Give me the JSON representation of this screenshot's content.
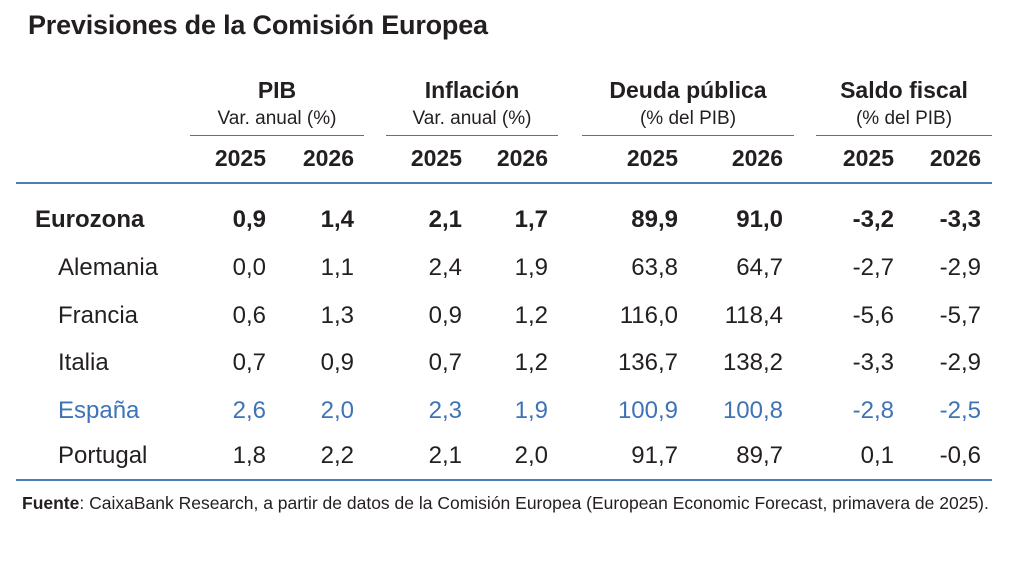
{
  "title": "Previsiones de la Comisión Europea",
  "groups": [
    {
      "title": "PIB",
      "subtitle": "Var. anual (%)"
    },
    {
      "title": "Inflación",
      "subtitle": "Var. anual (%)"
    },
    {
      "title": "Deuda pública",
      "subtitle": "(% del PIB)"
    },
    {
      "title": "Saldo fiscal",
      "subtitle": "(% del PIB)"
    }
  ],
  "years": [
    "2025",
    "2026"
  ],
  "rows": [
    {
      "label": "Eurozona",
      "values": [
        "0,9",
        "1,4",
        "2,1",
        "1,7",
        "89,9",
        "91,0",
        "-3,2",
        "-3,3"
      ]
    },
    {
      "label": "Alemania",
      "values": [
        "0,0",
        "1,1",
        "2,4",
        "1,9",
        "63,8",
        "64,7",
        "-2,7",
        "-2,9"
      ]
    },
    {
      "label": "Francia",
      "values": [
        "0,6",
        "1,3",
        "0,9",
        "1,2",
        "116,0",
        "118,4",
        "-5,6",
        "-5,7"
      ]
    },
    {
      "label": "Italia",
      "values": [
        "0,7",
        "0,9",
        "0,7",
        "1,2",
        "136,7",
        "138,2",
        "-3,3",
        "-2,9"
      ]
    },
    {
      "label": "España",
      "values": [
        "2,6",
        "2,0",
        "2,3",
        "1,9",
        "100,9",
        "100,8",
        "-2,8",
        "-2,5"
      ]
    },
    {
      "label": "Portugal",
      "values": [
        "1,8",
        "2,2",
        "2,1",
        "2,0",
        "91,7",
        "89,7",
        "0,1",
        "-0,6"
      ]
    }
  ],
  "source": {
    "label": "Fuente",
    "text": ": CaixaBank Research, a partir de datos de la Comisión Europea (European Economic Forecast, primavera de 2025)."
  },
  "colors": {
    "highlight": "#3f73b8",
    "rule": "#4a7fb5"
  }
}
